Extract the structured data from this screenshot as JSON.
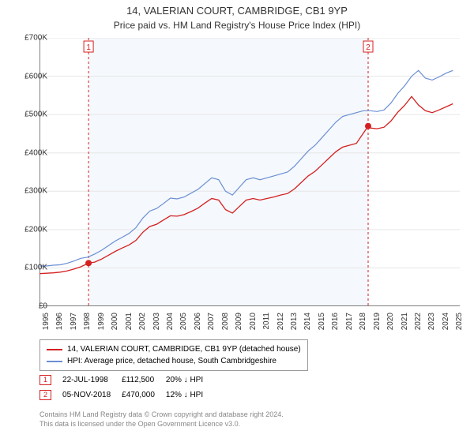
{
  "title": "14, VALERIAN COURT, CAMBRIDGE, CB1 9YP",
  "subtitle": "Price paid vs. HM Land Registry's House Price Index (HPI)",
  "chart": {
    "type": "line",
    "background_color": "#ffffff",
    "plot_band_color": "#f5f8fc",
    "axis_color": "#000000",
    "grid_color": "#e6e6e6",
    "label_fontsize": 10,
    "ylim": [
      0,
      700000
    ],
    "ytick_step": 100000,
    "yticks": [
      "£0",
      "£100K",
      "£200K",
      "£300K",
      "£400K",
      "£500K",
      "£600K",
      "£700K"
    ],
    "xlim": [
      1995,
      2025.5
    ],
    "xtick_step": 1,
    "xticks": [
      "1995",
      "1996",
      "1997",
      "1998",
      "1999",
      "2000",
      "2001",
      "2002",
      "2003",
      "2004",
      "2005",
      "2006",
      "2007",
      "2008",
      "2009",
      "2010",
      "2011",
      "2012",
      "2013",
      "2014",
      "2015",
      "2016",
      "2017",
      "2018",
      "2019",
      "2020",
      "2021",
      "2022",
      "2023",
      "2024",
      "2025"
    ],
    "series": [
      {
        "name": "hpi",
        "label": "HPI: Average price, detached house, South Cambridgeshire",
        "color": "#6a8fd4",
        "line_width": 1.2,
        "data": [
          [
            1995,
            105000
          ],
          [
            1995.5,
            105000
          ],
          [
            1996,
            107000
          ],
          [
            1996.5,
            108000
          ],
          [
            1997,
            112000
          ],
          [
            1997.5,
            118000
          ],
          [
            1998,
            125000
          ],
          [
            1998.5,
            128000
          ],
          [
            1999,
            136000
          ],
          [
            1999.5,
            146000
          ],
          [
            2000,
            158000
          ],
          [
            2000.5,
            170000
          ],
          [
            2001,
            180000
          ],
          [
            2001.5,
            190000
          ],
          [
            2002,
            205000
          ],
          [
            2002.5,
            230000
          ],
          [
            2003,
            248000
          ],
          [
            2003.5,
            255000
          ],
          [
            2004,
            268000
          ],
          [
            2004.5,
            282000
          ],
          [
            2005,
            280000
          ],
          [
            2005.5,
            285000
          ],
          [
            2006,
            295000
          ],
          [
            2006.5,
            305000
          ],
          [
            2007,
            320000
          ],
          [
            2007.5,
            335000
          ],
          [
            2008,
            330000
          ],
          [
            2008.5,
            300000
          ],
          [
            2009,
            290000
          ],
          [
            2009.5,
            310000
          ],
          [
            2010,
            330000
          ],
          [
            2010.5,
            335000
          ],
          [
            2011,
            330000
          ],
          [
            2011.5,
            335000
          ],
          [
            2012,
            340000
          ],
          [
            2012.5,
            345000
          ],
          [
            2013,
            350000
          ],
          [
            2013.5,
            365000
          ],
          [
            2014,
            385000
          ],
          [
            2014.5,
            405000
          ],
          [
            2015,
            420000
          ],
          [
            2015.5,
            440000
          ],
          [
            2016,
            460000
          ],
          [
            2016.5,
            480000
          ],
          [
            2017,
            495000
          ],
          [
            2017.5,
            500000
          ],
          [
            2018,
            505000
          ],
          [
            2018.5,
            510000
          ],
          [
            2019,
            510000
          ],
          [
            2019.5,
            508000
          ],
          [
            2020,
            512000
          ],
          [
            2020.5,
            530000
          ],
          [
            2021,
            555000
          ],
          [
            2021.5,
            575000
          ],
          [
            2022,
            600000
          ],
          [
            2022.5,
            615000
          ],
          [
            2023,
            595000
          ],
          [
            2023.5,
            590000
          ],
          [
            2024,
            598000
          ],
          [
            2024.5,
            608000
          ],
          [
            2025,
            615000
          ]
        ]
      },
      {
        "name": "paid",
        "label": "14, VALERIAN COURT, CAMBRIDGE, CB1 9YP (detached house)",
        "color": "#d42020",
        "line_width": 1.3,
        "data": [
          [
            1995,
            85000
          ],
          [
            1995.5,
            86000
          ],
          [
            1996,
            87000
          ],
          [
            1996.5,
            89000
          ],
          [
            1997,
            92000
          ],
          [
            1997.5,
            97000
          ],
          [
            1998,
            103000
          ],
          [
            1998.56,
            112500
          ],
          [
            1999,
            115000
          ],
          [
            1999.5,
            123000
          ],
          [
            2000,
            133000
          ],
          [
            2000.5,
            143000
          ],
          [
            2001,
            152000
          ],
          [
            2001.5,
            160000
          ],
          [
            2002,
            172000
          ],
          [
            2002.5,
            193000
          ],
          [
            2003,
            208000
          ],
          [
            2003.5,
            214000
          ],
          [
            2004,
            225000
          ],
          [
            2004.5,
            236000
          ],
          [
            2005,
            235000
          ],
          [
            2005.5,
            239000
          ],
          [
            2006,
            247000
          ],
          [
            2006.5,
            256000
          ],
          [
            2007,
            269000
          ],
          [
            2007.5,
            281000
          ],
          [
            2008,
            277000
          ],
          [
            2008.5,
            252000
          ],
          [
            2009,
            243000
          ],
          [
            2009.5,
            260000
          ],
          [
            2010,
            277000
          ],
          [
            2010.5,
            281000
          ],
          [
            2011,
            277000
          ],
          [
            2011.5,
            281000
          ],
          [
            2012,
            285000
          ],
          [
            2012.5,
            290000
          ],
          [
            2013,
            294000
          ],
          [
            2013.5,
            306000
          ],
          [
            2014,
            323000
          ],
          [
            2014.5,
            340000
          ],
          [
            2015,
            352000
          ],
          [
            2015.5,
            369000
          ],
          [
            2016,
            386000
          ],
          [
            2016.5,
            403000
          ],
          [
            2017,
            415000
          ],
          [
            2017.5,
            420000
          ],
          [
            2018,
            425000
          ],
          [
            2018.85,
            470000
          ],
          [
            2019,
            465000
          ],
          [
            2019.5,
            463000
          ],
          [
            2020,
            467000
          ],
          [
            2020.5,
            483000
          ],
          [
            2021,
            506000
          ],
          [
            2021.5,
            524000
          ],
          [
            2022,
            547000
          ],
          [
            2022.5,
            525000
          ],
          [
            2023,
            510000
          ],
          [
            2023.5,
            505000
          ],
          [
            2024,
            512000
          ],
          [
            2024.5,
            520000
          ],
          [
            2025,
            528000
          ]
        ]
      }
    ],
    "markers": [
      {
        "id": "1",
        "x": 1998.56,
        "y": 112500,
        "color": "#d42020",
        "date": "22-JUL-1998",
        "price": "£112,500",
        "delta": "20% ↓ HPI"
      },
      {
        "id": "2",
        "x": 2018.85,
        "y": 470000,
        "color": "#d42020",
        "date": "05-NOV-2018",
        "price": "£470,000",
        "delta": "12% ↓ HPI"
      }
    ],
    "marker_point_radius": 4,
    "marker_box_stroke": 1
  },
  "attribution_line1": "Contains HM Land Registry data © Crown copyright and database right 2024.",
  "attribution_line2": "This data is licensed under the Open Government Licence v3.0."
}
